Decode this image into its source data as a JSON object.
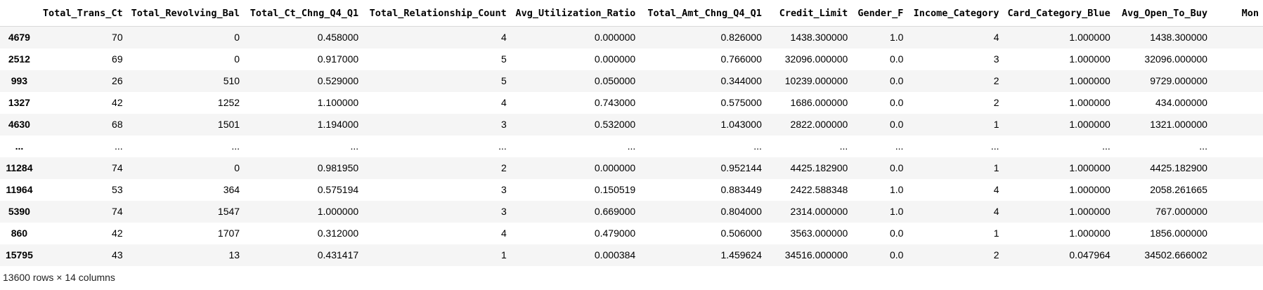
{
  "table": {
    "columns": [
      "Total_Trans_Ct",
      "Total_Revolving_Bal",
      "Total_Ct_Chng_Q4_Q1",
      "Total_Relationship_Count",
      "Avg_Utilization_Ratio",
      "Total_Amt_Chng_Q4_Q1",
      "Credit_Limit",
      "Gender_F",
      "Income_Category",
      "Card_Category_Blue",
      "Avg_Open_To_Buy",
      "Mon"
    ],
    "rows": [
      {
        "index": "4679",
        "cells": [
          "70",
          "0",
          "0.458000",
          "4",
          "0.000000",
          "0.826000",
          "1438.300000",
          "1.0",
          "4",
          "1.000000",
          "1438.300000",
          ""
        ]
      },
      {
        "index": "2512",
        "cells": [
          "69",
          "0",
          "0.917000",
          "5",
          "0.000000",
          "0.766000",
          "32096.000000",
          "0.0",
          "3",
          "1.000000",
          "32096.000000",
          ""
        ]
      },
      {
        "index": "993",
        "cells": [
          "26",
          "510",
          "0.529000",
          "5",
          "0.050000",
          "0.344000",
          "10239.000000",
          "0.0",
          "2",
          "1.000000",
          "9729.000000",
          ""
        ]
      },
      {
        "index": "1327",
        "cells": [
          "42",
          "1252",
          "1.100000",
          "4",
          "0.743000",
          "0.575000",
          "1686.000000",
          "0.0",
          "2",
          "1.000000",
          "434.000000",
          ""
        ]
      },
      {
        "index": "4630",
        "cells": [
          "68",
          "1501",
          "1.194000",
          "3",
          "0.532000",
          "1.043000",
          "2822.000000",
          "0.0",
          "1",
          "1.000000",
          "1321.000000",
          ""
        ]
      },
      {
        "index": "...",
        "cells": [
          "...",
          "...",
          "...",
          "...",
          "...",
          "...",
          "...",
          "...",
          "...",
          "...",
          "...",
          ""
        ]
      },
      {
        "index": "11284",
        "cells": [
          "74",
          "0",
          "0.981950",
          "2",
          "0.000000",
          "0.952144",
          "4425.182900",
          "0.0",
          "1",
          "1.000000",
          "4425.182900",
          ""
        ]
      },
      {
        "index": "11964",
        "cells": [
          "53",
          "364",
          "0.575194",
          "3",
          "0.150519",
          "0.883449",
          "2422.588348",
          "1.0",
          "4",
          "1.000000",
          "2058.261665",
          ""
        ]
      },
      {
        "index": "5390",
        "cells": [
          "74",
          "1547",
          "1.000000",
          "3",
          "0.669000",
          "0.804000",
          "2314.000000",
          "1.0",
          "4",
          "1.000000",
          "767.000000",
          ""
        ]
      },
      {
        "index": "860",
        "cells": [
          "42",
          "1707",
          "0.312000",
          "4",
          "0.479000",
          "0.506000",
          "3563.000000",
          "0.0",
          "1",
          "1.000000",
          "1856.000000",
          ""
        ]
      },
      {
        "index": "15795",
        "cells": [
          "43",
          "13",
          "0.431417",
          "1",
          "0.000384",
          "1.459624",
          "34516.000000",
          "0.0",
          "2",
          "0.047964",
          "34502.666002",
          ""
        ]
      }
    ]
  },
  "footer": {
    "shape_text": "13600 rows × 14 columns"
  },
  "colors": {
    "stripe_row": "#f5f5f5",
    "plain_row": "#ffffff",
    "header_border": "#d9d9d9"
  }
}
